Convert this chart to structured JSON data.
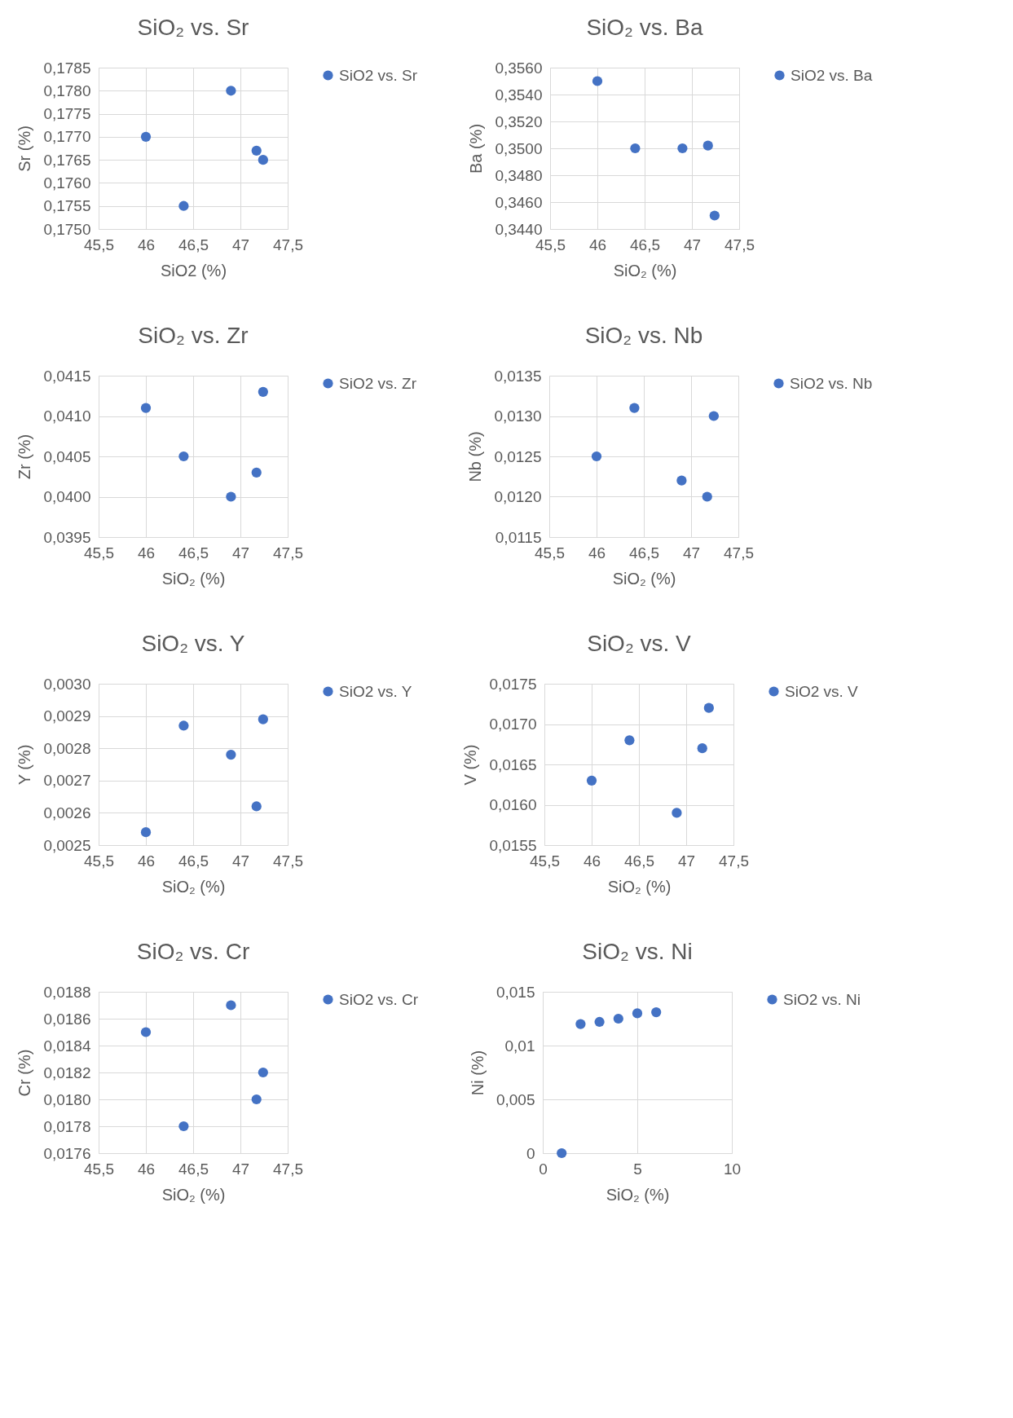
{
  "chart_data": [
    {
      "type": "scatter",
      "title": "SiO₂ vs. Sr",
      "xlabel": "SiO2 (%)",
      "ylabel": "Sr (%)",
      "x": [
        46.0,
        46.4,
        46.9,
        47.17,
        47.24
      ],
      "series": [
        {
          "name": "SiO2 vs. Sr",
          "color": "#4472c4",
          "values": [
            0.177,
            0.1755,
            0.178,
            0.1767,
            0.1765
          ]
        }
      ],
      "xlim": [
        45.5,
        47.5
      ],
      "xticks": [
        {
          "value": 45.5,
          "label": "45,5"
        },
        46,
        {
          "value": 46.5,
          "label": "46,5"
        },
        47,
        {
          "value": 47.5,
          "label": "47,5"
        }
      ],
      "ylim": [
        0.175,
        0.1785
      ],
      "yticks": [
        {
          "value": 0.175,
          "label": "0,1750"
        },
        {
          "value": 0.1755,
          "label": "0,1755"
        },
        {
          "value": 0.176,
          "label": "0,1760"
        },
        {
          "value": 0.1765,
          "label": "0,1765"
        },
        {
          "value": 0.177,
          "label": "0,1770"
        },
        {
          "value": 0.1775,
          "label": "0,1775"
        },
        {
          "value": 0.178,
          "label": "0,1780"
        },
        {
          "value": 0.1785,
          "label": "0,1785"
        }
      ],
      "grid": true,
      "legend": "right",
      "marker": "circle"
    },
    {
      "type": "scatter",
      "title": "SiO₂ vs. Ba",
      "xlabel": "SiO₂ (%)",
      "ylabel": "Ba (%)",
      "x": [
        46.0,
        46.4,
        46.9,
        47.17,
        47.24
      ],
      "series": [
        {
          "name": "SiO2 vs. Ba",
          "color": "#4472c4",
          "values": [
            0.355,
            0.35,
            0.35,
            0.3502,
            0.345
          ]
        }
      ],
      "xlim": [
        45.5,
        47.5
      ],
      "xticks": [
        {
          "value": 45.5,
          "label": "45,5"
        },
        46,
        {
          "value": 46.5,
          "label": "46,5"
        },
        47,
        {
          "value": 47.5,
          "label": "47,5"
        }
      ],
      "ylim": [
        0.344,
        0.356
      ],
      "yticks": [
        {
          "value": 0.344,
          "label": "0,3440"
        },
        {
          "value": 0.346,
          "label": "0,3460"
        },
        {
          "value": 0.348,
          "label": "0,3480"
        },
        {
          "value": 0.35,
          "label": "0,3500"
        },
        {
          "value": 0.352,
          "label": "0,3520"
        },
        {
          "value": 0.354,
          "label": "0,3540"
        },
        {
          "value": 0.356,
          "label": "0,3560"
        }
      ],
      "grid": true,
      "legend": "right",
      "marker": "circle"
    },
    {
      "type": "scatter",
      "title": "SiO₂ vs. Zr",
      "xlabel": "SiO₂ (%)",
      "ylabel": "Zr (%)",
      "x": [
        46.0,
        46.4,
        46.9,
        47.17,
        47.24
      ],
      "series": [
        {
          "name": "SiO2 vs. Zr",
          "color": "#4472c4",
          "values": [
            0.0411,
            0.0405,
            0.04,
            0.0403,
            0.0413
          ]
        }
      ],
      "xlim": [
        45.5,
        47.5
      ],
      "xticks": [
        {
          "value": 45.5,
          "label": "45,5"
        },
        46,
        {
          "value": 46.5,
          "label": "46,5"
        },
        47,
        {
          "value": 47.5,
          "label": "47,5"
        }
      ],
      "ylim": [
        0.0395,
        0.0415
      ],
      "yticks": [
        {
          "value": 0.0395,
          "label": "0,0395"
        },
        {
          "value": 0.04,
          "label": "0,0400"
        },
        {
          "value": 0.0405,
          "label": "0,0405"
        },
        {
          "value": 0.041,
          "label": "0,0410"
        },
        {
          "value": 0.0415,
          "label": "0,0415"
        }
      ],
      "grid": true,
      "legend": "right",
      "marker": "circle"
    },
    {
      "type": "scatter",
      "title": "SiO₂ vs. Nb",
      "xlabel": "SiO₂ (%)",
      "ylabel": "Nb (%)",
      "x": [
        46.0,
        46.4,
        46.9,
        47.17,
        47.24
      ],
      "series": [
        {
          "name": "SiO2 vs. Nb",
          "color": "#4472c4",
          "values": [
            0.0125,
            0.0131,
            0.0122,
            0.012,
            0.013
          ]
        }
      ],
      "xlim": [
        45.5,
        47.5
      ],
      "xticks": [
        {
          "value": 45.5,
          "label": "45,5"
        },
        46,
        {
          "value": 46.5,
          "label": "46,5"
        },
        47,
        {
          "value": 47.5,
          "label": "47,5"
        }
      ],
      "ylim": [
        0.0115,
        0.0135
      ],
      "yticks": [
        {
          "value": 0.0115,
          "label": "0,0115"
        },
        {
          "value": 0.012,
          "label": "0,0120"
        },
        {
          "value": 0.0125,
          "label": "0,0125"
        },
        {
          "value": 0.013,
          "label": "0,0130"
        },
        {
          "value": 0.0135,
          "label": "0,0135"
        }
      ],
      "grid": true,
      "legend": "right",
      "marker": "circle"
    },
    {
      "type": "scatter",
      "title": "SiO₂ vs. Y",
      "xlabel": "SiO₂ (%)",
      "ylabel": "Y (%)",
      "x": [
        46.0,
        46.4,
        46.9,
        47.17,
        47.24
      ],
      "series": [
        {
          "name": "SiO2 vs. Y",
          "color": "#4472c4",
          "values": [
            0.00254,
            0.00287,
            0.00278,
            0.00262,
            0.00289
          ]
        }
      ],
      "xlim": [
        45.5,
        47.5
      ],
      "xticks": [
        {
          "value": 45.5,
          "label": "45,5"
        },
        46,
        {
          "value": 46.5,
          "label": "46,5"
        },
        47,
        {
          "value": 47.5,
          "label": "47,5"
        }
      ],
      "ylim": [
        0.0025,
        0.003
      ],
      "yticks": [
        {
          "value": 0.0025,
          "label": "0,0025"
        },
        {
          "value": 0.0026,
          "label": "0,0026"
        },
        {
          "value": 0.0027,
          "label": "0,0027"
        },
        {
          "value": 0.0028,
          "label": "0,0028"
        },
        {
          "value": 0.0029,
          "label": "0,0029"
        },
        {
          "value": 0.003,
          "label": "0,0030"
        }
      ],
      "grid": true,
      "legend": "right",
      "marker": "circle"
    },
    {
      "type": "scatter",
      "title": "SiO₂ vs. V",
      "xlabel": "SiO₂ (%)",
      "ylabel": "V (%)",
      "x": [
        46.0,
        46.4,
        46.9,
        47.17,
        47.24
      ],
      "series": [
        {
          "name": "SiO2 vs. V",
          "color": "#4472c4",
          "values": [
            0.0163,
            0.0168,
            0.0159,
            0.0167,
            0.0172
          ]
        }
      ],
      "xlim": [
        45.5,
        47.5
      ],
      "xticks": [
        {
          "value": 45.5,
          "label": "45,5"
        },
        46,
        {
          "value": 46.5,
          "label": "46,5"
        },
        47,
        {
          "value": 47.5,
          "label": "47,5"
        }
      ],
      "ylim": [
        0.0155,
        0.0175
      ],
      "yticks": [
        {
          "value": 0.0155,
          "label": "0,0155"
        },
        {
          "value": 0.016,
          "label": "0,0160"
        },
        {
          "value": 0.0165,
          "label": "0,0165"
        },
        {
          "value": 0.017,
          "label": "0,0170"
        },
        {
          "value": 0.0175,
          "label": "0,0175"
        }
      ],
      "grid": true,
      "legend": "right",
      "marker": "circle"
    },
    {
      "type": "scatter",
      "title": "SiO₂ vs. Cr",
      "xlabel": "SiO₂ (%)",
      "ylabel": "Cr (%)",
      "x": [
        46.0,
        46.4,
        46.9,
        47.17,
        47.24
      ],
      "series": [
        {
          "name": "SiO2 vs. Cr",
          "color": "#4472c4",
          "values": [
            0.0185,
            0.0178,
            0.0187,
            0.018,
            0.0182
          ]
        }
      ],
      "xlim": [
        45.5,
        47.5
      ],
      "xticks": [
        {
          "value": 45.5,
          "label": "45,5"
        },
        46,
        {
          "value": 46.5,
          "label": "46,5"
        },
        47,
        {
          "value": 47.5,
          "label": "47,5"
        }
      ],
      "ylim": [
        0.0176,
        0.0188
      ],
      "yticks": [
        {
          "value": 0.0176,
          "label": "0,0176"
        },
        {
          "value": 0.0178,
          "label": "0,0178"
        },
        {
          "value": 0.018,
          "label": "0,0180"
        },
        {
          "value": 0.0182,
          "label": "0,0182"
        },
        {
          "value": 0.0184,
          "label": "0,0184"
        },
        {
          "value": 0.0186,
          "label": "0,0186"
        },
        {
          "value": 0.0188,
          "label": "0,0188"
        }
      ],
      "grid": true,
      "legend": "right",
      "marker": "circle"
    },
    {
      "type": "scatter",
      "title": "SiO₂ vs. Ni",
      "xlabel": "SiO₂ (%)",
      "ylabel": "Ni (%)",
      "x": [
        1,
        2,
        3,
        4,
        5,
        6
      ],
      "series": [
        {
          "name": "SiO2 vs. Ni",
          "color": "#4472c4",
          "values": [
            0,
            0.012,
            0.0122,
            0.0125,
            0.013,
            0.0131
          ]
        }
      ],
      "xlim": [
        0,
        10
      ],
      "xticks": [
        0,
        5,
        10
      ],
      "ylim": [
        0,
        0.015
      ],
      "yticks": [
        0,
        {
          "value": 0.005,
          "label": "0,005"
        },
        {
          "value": 0.01,
          "label": "0,01"
        },
        {
          "value": 0.015,
          "label": "0,015"
        }
      ],
      "grid": true,
      "legend": "right",
      "marker": "circle"
    }
  ]
}
